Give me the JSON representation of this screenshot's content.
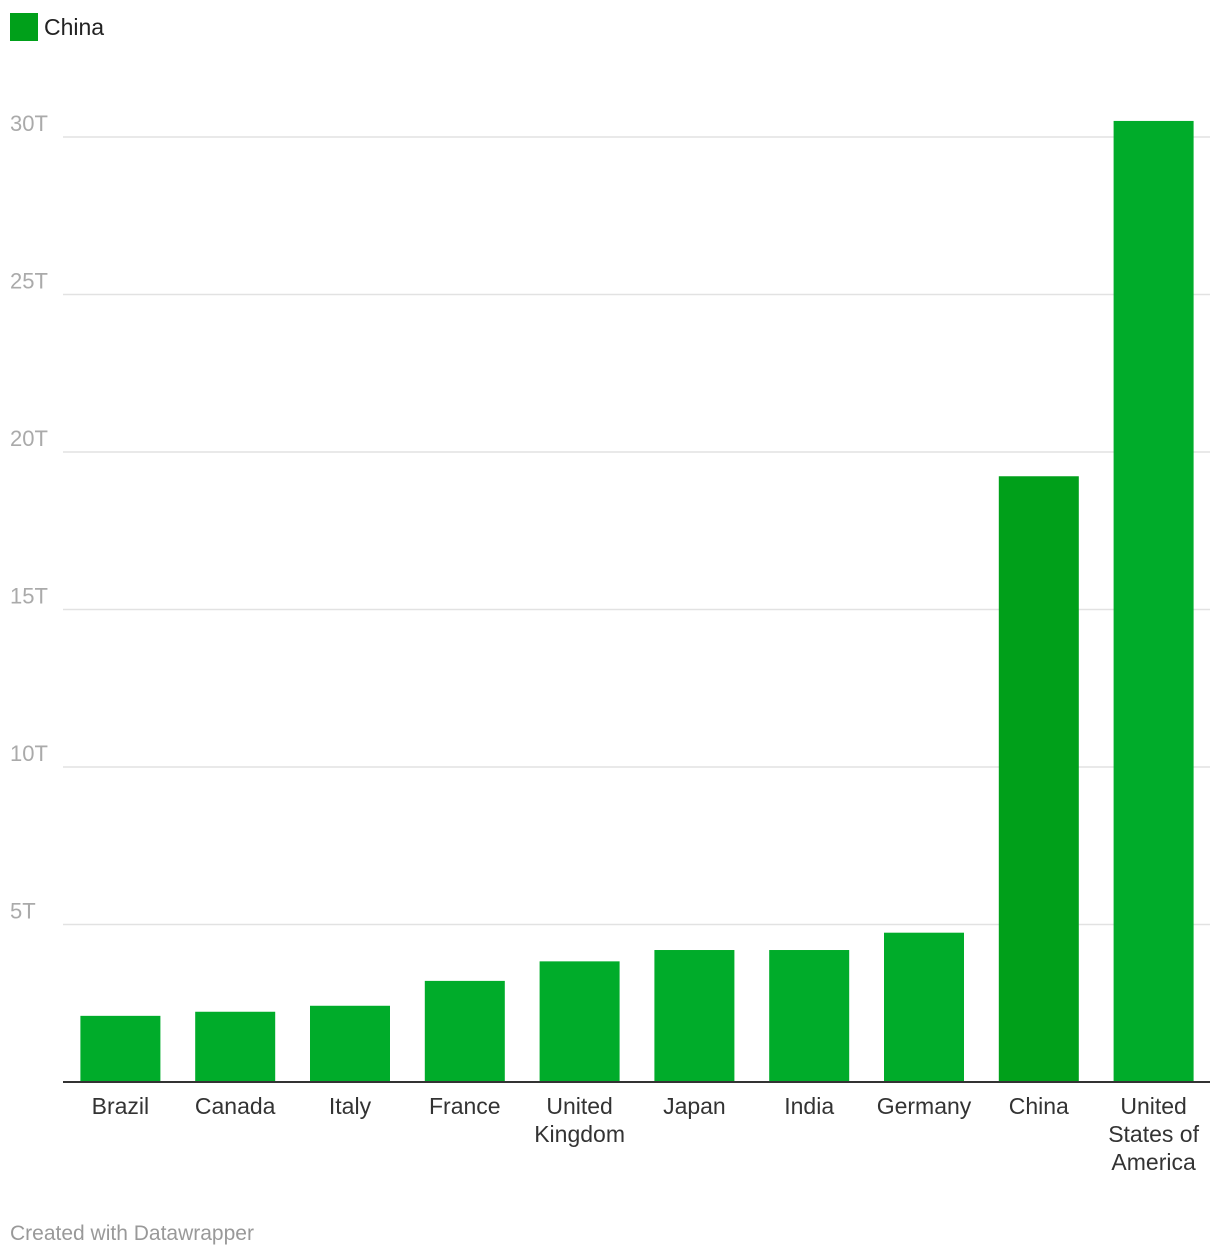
{
  "legend": {
    "label": "China",
    "color": "#00a01a"
  },
  "colors": {
    "bar": "#00ac2a",
    "highlight": "#00a01a",
    "grid": "#e2e2e2",
    "axis": "#333333"
  },
  "chart_data": {
    "type": "bar",
    "categories": [
      "Brazil",
      "Canada",
      "Italy",
      "France",
      "United Kingdom",
      "Japan",
      "India",
      "Germany",
      "China",
      "United States of America"
    ],
    "category_label_lines": [
      [
        "Brazil"
      ],
      [
        "Canada"
      ],
      [
        "Italy"
      ],
      [
        "France"
      ],
      [
        "United",
        "Kingdom"
      ],
      [
        "Japan"
      ],
      [
        "India"
      ],
      [
        "Germany"
      ],
      [
        "China"
      ],
      [
        "United",
        "States of",
        "America"
      ]
    ],
    "values": [
      2.1,
      2.23,
      2.42,
      3.21,
      3.83,
      4.19,
      4.19,
      4.74,
      19.23,
      30.51
    ],
    "value_unit": "trillion",
    "highlighted": [
      "China"
    ],
    "yticks": [
      5,
      10,
      15,
      20,
      25,
      30
    ],
    "ytick_labels": [
      "5T",
      "10T",
      "15T",
      "20T",
      "25T",
      "30T"
    ],
    "ylim": [
      0,
      30
    ],
    "grid": true,
    "legend_position": "top-left",
    "title": "",
    "xlabel": "",
    "ylabel": ""
  },
  "credit": "Created with Datawrapper"
}
